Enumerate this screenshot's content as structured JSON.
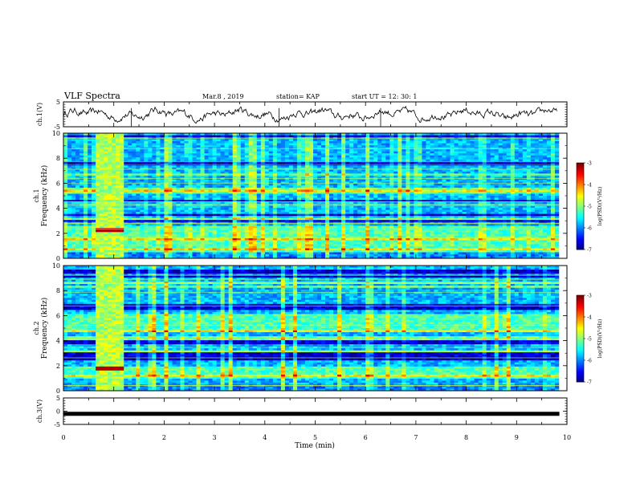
{
  "header": {
    "title": "VLF Spectra",
    "date": "Mar.8 , 2019",
    "station": "station= KAP",
    "start": "start UT = 12: 30: 1"
  },
  "chart_data": [
    {
      "type": "line",
      "panel": "ch1-waveform",
      "ylabel": "ch.1(V)",
      "ylim": [
        -5,
        5
      ],
      "yticks": [
        "5",
        "-5"
      ],
      "xlim": [
        0,
        10
      ],
      "description_values": "noisy waveform oscillating roughly between -2 and 2 V"
    },
    {
      "type": "heatmap",
      "panel": "ch1-spectrogram",
      "ylabel": "ch.1 Frequency (kHz)",
      "ylim": [
        0,
        10
      ],
      "yticks": [
        "0",
        "2",
        "4",
        "6",
        "8",
        "10"
      ],
      "xlim": [
        0,
        10
      ],
      "colorbar": {
        "label": "log(PSD)(V²/Hz)",
        "range": [
          -7,
          -3
        ],
        "ticks": [
          "-3",
          "-4",
          "-5",
          "-6",
          "-7"
        ]
      },
      "features": {
        "strong_band_time_min": [
          0.62,
          1.22
        ],
        "strong_line_khz": 2.2,
        "dark_bands_khz": [
          [
            2.7,
            3.0
          ],
          [
            3.4,
            3.6
          ],
          [
            4.5,
            4.7
          ],
          [
            7.4,
            7.8
          ],
          [
            9.5,
            9.8
          ]
        ],
        "bright_bands_khz": [
          [
            0.5,
            2.5
          ],
          [
            5.2,
            5.6
          ],
          [
            6.6,
            6.8
          ]
        ]
      }
    },
    {
      "type": "heatmap",
      "panel": "ch2-spectrogram",
      "ylabel": "ch.2 Frequency (kHz)",
      "ylim": [
        0,
        10
      ],
      "yticks": [
        "0",
        "2",
        "4",
        "6",
        "8",
        "10"
      ],
      "xlim": [
        0,
        10
      ],
      "colorbar": {
        "label": "log(PSD)(V²/Hz)",
        "range": [
          -7,
          -3
        ],
        "ticks": [
          "-3",
          "-4",
          "-5",
          "-6",
          "-7"
        ]
      },
      "features": {
        "strong_band_time_min": [
          0.62,
          1.22
        ],
        "strong_line_khz": 1.8,
        "dark_bands_khz": [
          [
            2.5,
            3.0
          ],
          [
            3.7,
            4.0
          ],
          [
            6.5,
            7.0
          ],
          [
            9.0,
            9.7
          ]
        ],
        "bright_bands_khz": [
          [
            1.0,
            2.0
          ],
          [
            4.6,
            6.2
          ]
        ]
      }
    },
    {
      "type": "line",
      "panel": "ch3-waveform",
      "ylabel": "ch.3(V)",
      "ylim": [
        -5,
        5
      ],
      "yticks": [
        "5",
        "0",
        "-5"
      ],
      "xlim": [
        0,
        10
      ],
      "values_constant": -1.0
    }
  ],
  "xaxis": {
    "label": "Time (min)",
    "ticks": [
      "0",
      "1",
      "2",
      "3",
      "4",
      "5",
      "6",
      "7",
      "8",
      "9",
      "10"
    ]
  },
  "colors": {
    "scale": [
      "#00007f",
      "#0000ff",
      "#0080ff",
      "#00ffff",
      "#80ff80",
      "#ffff00",
      "#ff8000",
      "#ff0000",
      "#7f0000"
    ]
  }
}
